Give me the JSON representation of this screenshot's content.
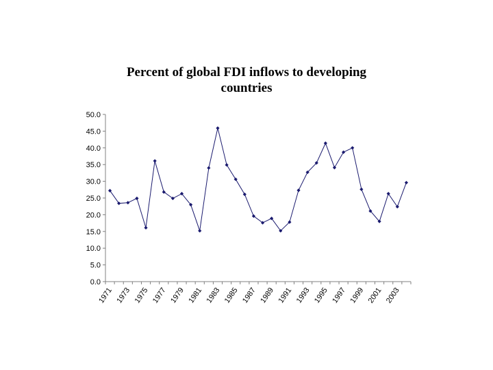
{
  "chart_data": {
    "type": "line",
    "title_lines": [
      "Percent of global FDI inflows to developing",
      "countries"
    ],
    "xlabel": "",
    "ylabel": "",
    "ylim": [
      0,
      50
    ],
    "y_ticks": [
      "0.0",
      "5.0",
      "10.0",
      "15.0",
      "20.0",
      "25.0",
      "30.0",
      "35.0",
      "40.0",
      "45.0",
      "50.0"
    ],
    "x_tick_labels": [
      "1971",
      "1973",
      "1975",
      "1977",
      "1979",
      "1981",
      "1983",
      "1985",
      "1987",
      "1989",
      "1991",
      "1993",
      "1995",
      "1997",
      "1999",
      "2001",
      "2003"
    ],
    "grid": false,
    "legend": "none",
    "series": [
      {
        "name": "Percent of global FDI inflows to developing countries",
        "color": "#1a1a6e",
        "x": [
          1971,
          1972,
          1973,
          1974,
          1975,
          1976,
          1977,
          1978,
          1979,
          1980,
          1981,
          1982,
          1983,
          1984,
          1985,
          1986,
          1987,
          1988,
          1989,
          1990,
          1991,
          1992,
          1993,
          1994,
          1995,
          1996,
          1997,
          1998,
          1999,
          2000,
          2001,
          2002,
          2003,
          2004
        ],
        "values": [
          27.2,
          23.4,
          23.6,
          24.9,
          16.1,
          36.1,
          26.8,
          24.9,
          26.3,
          23.0,
          15.2,
          34.0,
          45.9,
          34.9,
          30.6,
          26.1,
          19.6,
          17.6,
          18.9,
          15.2,
          17.8,
          27.3,
          32.7,
          35.5,
          41.4,
          34.1,
          38.7,
          40.0,
          27.6,
          21.1,
          18.0,
          26.3,
          22.4,
          29.6
        ]
      }
    ]
  }
}
